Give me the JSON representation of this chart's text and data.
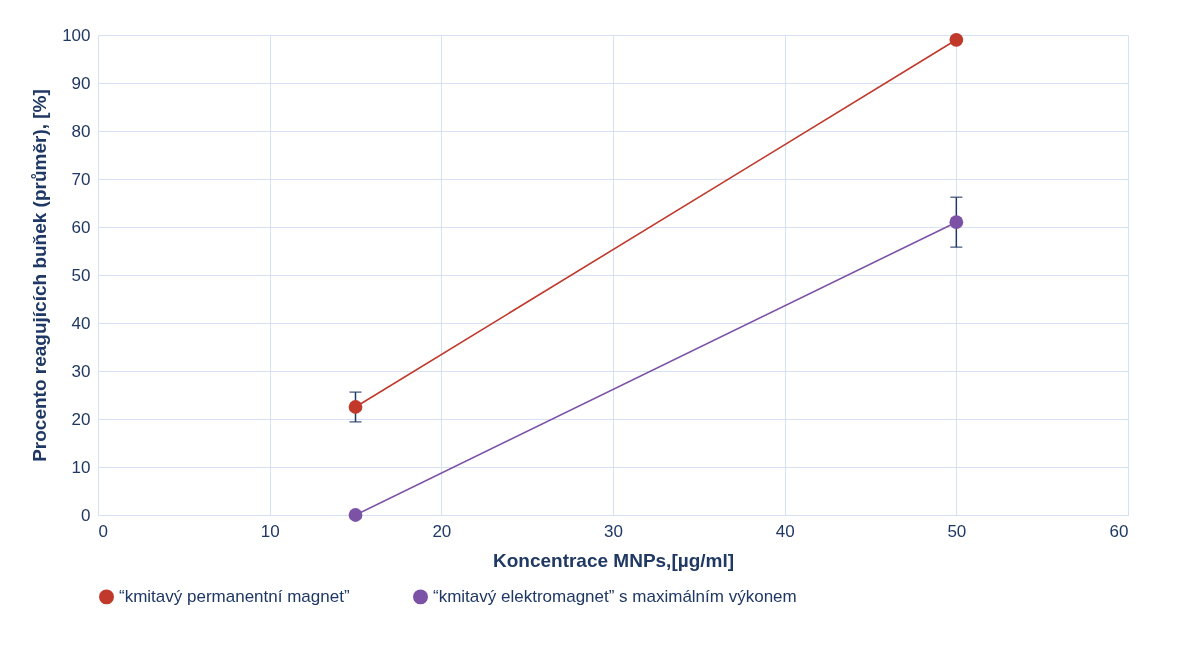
{
  "chart_data": {
    "type": "line",
    "xlabel": "Koncentrace MNPs,[µg/ml]",
    "ylabel": "Procento reagujících buňek (průměr), [%]",
    "x": [
      15,
      50
    ],
    "series": [
      {
        "name": "“kmitavý permanentní magnet”",
        "color": "#c0392b",
        "values": [
          22.5,
          99
        ],
        "errors": [
          [
            19.4,
            25.6
          ],
          null
        ]
      },
      {
        "name": "“kmitavý elektromagnet” s maximálním výkonem",
        "color": "#7b52a6",
        "values": [
          0,
          61
        ],
        "errors": [
          null,
          [
            55.8,
            66.2
          ]
        ]
      }
    ],
    "xlim": [
      0,
      60
    ],
    "xticks": [
      0,
      10,
      20,
      30,
      40,
      50,
      60
    ],
    "ylim": [
      0,
      100
    ],
    "yticks": [
      0,
      10,
      20,
      30,
      40,
      50,
      60,
      70,
      80,
      90,
      100
    ],
    "grid": true,
    "legend": "bottom",
    "marker": "circle",
    "line_style": "solid"
  }
}
